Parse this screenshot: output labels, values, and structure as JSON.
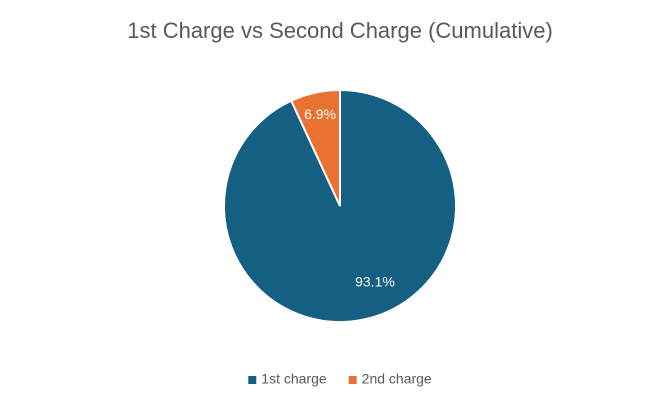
{
  "chart_data": {
    "type": "pie",
    "title": "1st Charge vs Second Charge (Cumulative)",
    "categories": [
      "1st charge",
      "2nd charge"
    ],
    "values": [
      93.1,
      6.9
    ],
    "value_labels": [
      "93.1%",
      "6.9%"
    ],
    "colors": [
      "#156082",
      "#e97132"
    ],
    "legend": "bottom"
  }
}
